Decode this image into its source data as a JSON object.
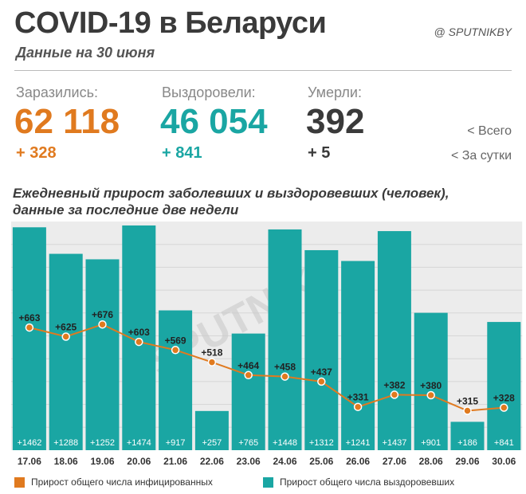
{
  "header": {
    "title": "COVID-19 в Беларуси",
    "subtitle": "Данные на 30 июня",
    "brand": "@ SPUTNIKBY"
  },
  "stats": {
    "infected": {
      "label": "Заразились:",
      "total": "62 118",
      "delta": "+ 328",
      "color": "#e07a1f"
    },
    "recovered": {
      "label": "Выздоровели:",
      "total": "46 054",
      "delta": "+ 841",
      "color": "#1aa6a3"
    },
    "died": {
      "label": "Умерли:",
      "total": "392",
      "delta": "+ 5",
      "color": "#3a3a3a"
    },
    "hint_total": "<  Всего",
    "hint_daily": "<  За сутки"
  },
  "watermark": "SPUTNIK",
  "chart_data": {
    "type": "bar",
    "title": "Ежедневный прирост заболевших и выздоровевших (человек), данные за последние две недели",
    "categories": [
      "17.06",
      "18.06",
      "19.06",
      "20.06",
      "21.06",
      "22.06",
      "23.06",
      "24.06",
      "25.06",
      "26.06",
      "27.06",
      "28.06",
      "29.06",
      "30.06"
    ],
    "series": [
      {
        "name": "Прирост общего числа выздоровевших",
        "type": "bar",
        "color": "#1aa6a3",
        "values": [
          1462,
          1288,
          1252,
          1474,
          917,
          257,
          765,
          1448,
          1312,
          1241,
          1437,
          901,
          186,
          841
        ],
        "labels": [
          "+1462",
          "+1288",
          "+1252",
          "+1474",
          "+917",
          "+257",
          "+765",
          "+1448",
          "+1312",
          "+1241",
          "+1437",
          "+901",
          "+186",
          "+841"
        ]
      },
      {
        "name": "Прирост общего числа инфицированных",
        "type": "line",
        "color": "#e07a1f",
        "values": [
          663,
          625,
          676,
          603,
          569,
          518,
          464,
          458,
          437,
          331,
          382,
          380,
          315,
          328
        ],
        "labels": [
          "+663",
          "+625",
          "+676",
          "+603",
          "+569",
          "+518",
          "+464",
          "+458",
          "+437",
          "+331",
          "+382",
          "+380",
          "+315",
          "+328"
        ]
      }
    ],
    "grid": true
  },
  "legend": {
    "infected_label": "Прирост общего числа инфицированных",
    "recovered_label": "Прирост общего числа выздоровевших",
    "infected_color": "#e07a1f",
    "recovered_color": "#1aa6a3"
  }
}
